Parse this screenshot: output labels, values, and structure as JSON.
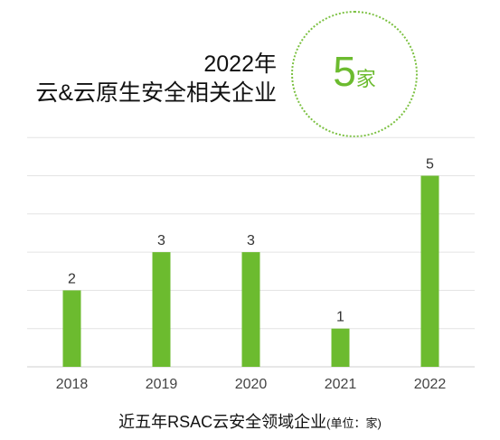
{
  "header": {
    "year": "2022年",
    "subtitle": "云&云原生安全相关企业"
  },
  "highlight": {
    "number": "5",
    "unit": "家"
  },
  "chart_data": {
    "type": "bar",
    "categories": [
      "2018",
      "2019",
      "2020",
      "2021",
      "2022"
    ],
    "values": [
      2,
      3,
      3,
      1,
      5
    ],
    "title": "近五年RSAC云安全领域企业",
    "unit_note": "(单位：家)",
    "ylim": [
      0,
      6
    ],
    "grid": true,
    "bar_color": "#6cbb2f"
  }
}
